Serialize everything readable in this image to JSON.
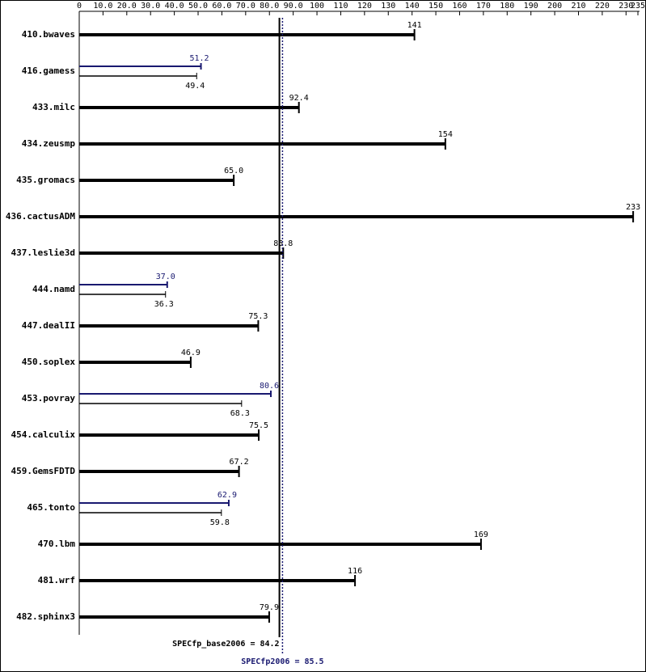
{
  "chart_data": {
    "type": "hbar",
    "categories": [
      "410.bwaves",
      "416.gamess",
      "433.milc",
      "434.zeusmp",
      "435.gromacs",
      "436.cactusADM",
      "437.leslie3d",
      "444.namd",
      "447.dealII",
      "450.soplex",
      "453.povray",
      "454.calculix",
      "459.GemsFDTD",
      "465.tonto",
      "470.lbm",
      "481.wrf",
      "482.sphinx3"
    ],
    "series": [
      {
        "color": "#000000",
        "values": [
          141,
          49.4,
          92.4,
          154,
          65.0,
          233,
          85.8,
          36.3,
          75.3,
          46.9,
          68.3,
          75.5,
          67.2,
          59.8,
          169,
          116,
          79.9
        ],
        "value_labels": [
          "141",
          "49.4",
          "92.4",
          "154",
          "65.0",
          "233",
          "85.8",
          "36.3",
          "75.3",
          "46.9",
          "68.3",
          "75.5",
          "67.2",
          "59.8",
          "169",
          "116",
          "79.9"
        ]
      },
      {
        "color": "#191970",
        "values": [
          null,
          51.2,
          null,
          null,
          null,
          null,
          null,
          37.0,
          null,
          null,
          80.6,
          null,
          null,
          62.9,
          null,
          null,
          null
        ],
        "value_labels": [
          null,
          "51.2",
          null,
          null,
          null,
          null,
          null,
          "37.0",
          null,
          null,
          "80.6",
          null,
          null,
          "62.9",
          null,
          null,
          null
        ]
      }
    ],
    "xlim": [
      0,
      235
    ],
    "xticks": [
      0,
      {
        "value": 10,
        "label": "10.0"
      },
      {
        "value": 20,
        "label": "20.0"
      },
      {
        "value": 30,
        "label": "30.0"
      },
      {
        "value": 40,
        "label": "40.0"
      },
      {
        "value": 50,
        "label": "50.0"
      },
      {
        "value": 60,
        "label": "60.0"
      },
      {
        "value": 70,
        "label": "70.0"
      },
      {
        "value": 80,
        "label": "80.0"
      },
      {
        "value": 90,
        "label": "90.0"
      },
      100,
      110,
      120,
      130,
      140,
      150,
      160,
      170,
      180,
      190,
      200,
      210,
      220,
      230,
      235
    ],
    "reference_lines": [
      {
        "label": "SPECfp_base2006 = 84.2",
        "value": 84.2,
        "color": "#000000",
        "style": "solid"
      },
      {
        "label": "SPECfp2006 = 85.5",
        "value": 85.5,
        "color": "#191970",
        "style": "dotted"
      }
    ]
  }
}
